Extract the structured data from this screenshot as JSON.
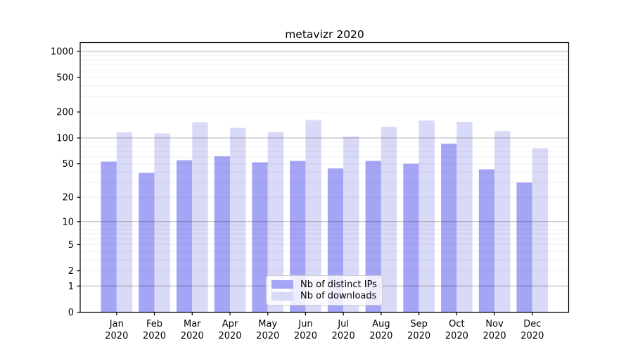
{
  "title": "metavizr 2020",
  "chart_data": {
    "type": "bar",
    "title": "metavizr 2020",
    "categories": [
      "Jan",
      "Feb",
      "Mar",
      "Apr",
      "May",
      "Jun",
      "Jul",
      "Aug",
      "Sep",
      "Oct",
      "Nov",
      "Dec"
    ],
    "category_year": "2020",
    "series": [
      {
        "name": "Nb of distinct IPs",
        "color": "#a5a5f6",
        "values": [
          53,
          39,
          55,
          61,
          52,
          54,
          44,
          54,
          50,
          86,
          43,
          30
        ]
      },
      {
        "name": "Nb of downloads",
        "color": "#d9d9f8",
        "values": [
          116,
          113,
          152,
          131,
          117,
          161,
          104,
          135,
          159,
          154,
          120,
          76
        ]
      }
    ],
    "xlabel": "",
    "ylabel": "",
    "yscale": "log1p",
    "ylim": [
      0,
      1261
    ],
    "grid": true,
    "ytick_labels": [
      "1000",
      "500",
      "200",
      "100",
      "50",
      "20",
      "10",
      "5",
      "2",
      "1",
      "0"
    ],
    "ytick_values": [
      1000,
      500,
      200,
      100,
      50,
      20,
      10,
      5,
      2,
      1,
      0
    ],
    "major_gridlines": [
      1,
      10,
      100,
      1000
    ],
    "minor_gridlines": [
      2,
      3,
      4,
      5,
      6,
      7,
      8,
      9,
      20,
      30,
      40,
      50,
      60,
      70,
      80,
      90,
      200,
      300,
      400,
      500,
      600,
      700,
      800,
      900
    ],
    "legend": {
      "position": "lower center",
      "entries": [
        "Nb of distinct IPs",
        "Nb of downloads"
      ]
    }
  }
}
